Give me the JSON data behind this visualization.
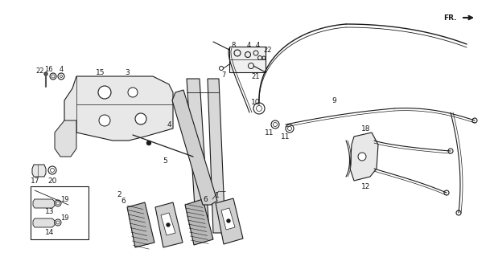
{
  "bg_color": "#ffffff",
  "line_color": "#1a1a1a",
  "figsize": [
    6.09,
    3.2
  ],
  "dpi": 100,
  "label_fontsize": 6.5
}
